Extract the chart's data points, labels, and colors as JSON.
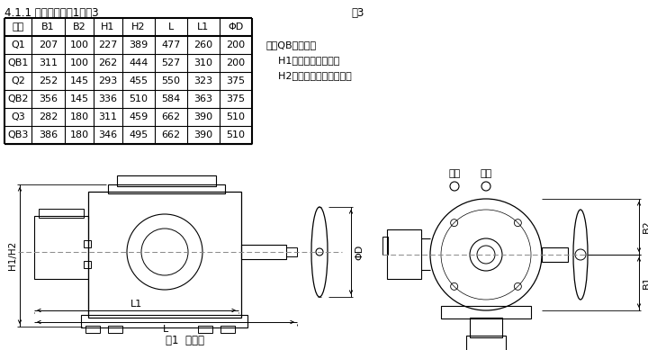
{
  "title": "4.1.1 外形尺寸见图1和表3",
  "table_label": "表3",
  "headers": [
    "型号",
    "B1",
    "B2",
    "H1",
    "H2",
    "L",
    "L1",
    "ΦD"
  ],
  "rows": [
    [
      "Q1",
      "207",
      "100",
      "227",
      "389",
      "477",
      "260",
      "200"
    ],
    [
      "QB1",
      "311",
      "100",
      "262",
      "444",
      "527",
      "310",
      "200"
    ],
    [
      "Q2",
      "252",
      "145",
      "293",
      "455",
      "550",
      "323",
      "375"
    ],
    [
      "QB2",
      "356",
      "145",
      "336",
      "510",
      "584",
      "363",
      "375"
    ],
    [
      "Q3",
      "282",
      "180",
      "311",
      "459",
      "662",
      "390",
      "510"
    ],
    [
      "QB3",
      "386",
      "180",
      "346",
      "495",
      "662",
      "390",
      "510"
    ]
  ],
  "note_lines": [
    "注：QB为隔爆型",
    "    H1为户外型、隔爆型",
    "    H2为整体型、整体调节型"
  ],
  "fig_label": "图1  外形图",
  "bg_color": "#ffffff",
  "text_color": "#000000"
}
